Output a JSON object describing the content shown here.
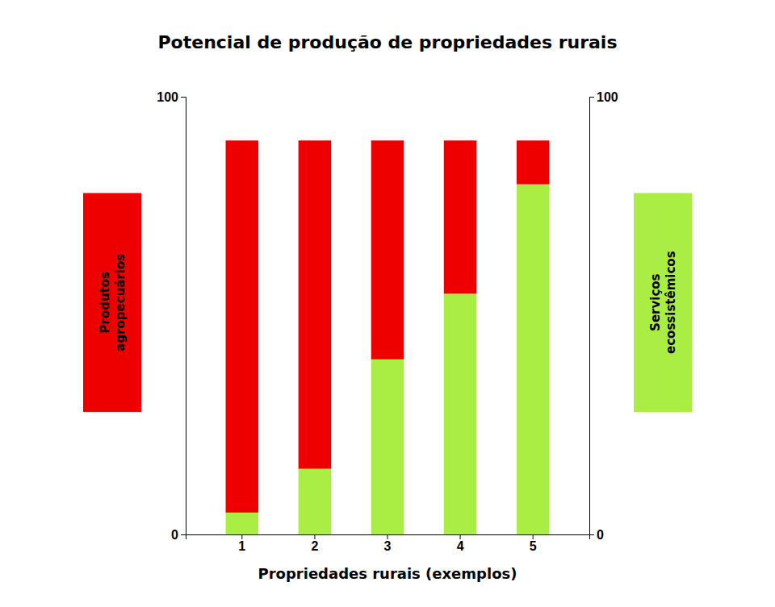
{
  "chart_data": {
    "type": "bar",
    "stacked": true,
    "title": "Potencial de produção de propriedades rurais",
    "xlabel": "Propriedades rurais (exemplos)",
    "categories": [
      1,
      2,
      3,
      4,
      5
    ],
    "series": [
      {
        "name": "Serviços\necossistêmicos",
        "color": "#AAEE44",
        "values": [
          5,
          15,
          40,
          55,
          80
        ]
      },
      {
        "name": "Produtos\nagropecuários",
        "color": "#EE0000",
        "values": [
          85,
          75,
          50,
          35,
          10
        ]
      }
    ],
    "ylim": [
      0,
      100
    ],
    "yticks": [
      0,
      100
    ],
    "y2lim": [
      0,
      100
    ],
    "y2ticks": [
      0,
      100
    ],
    "grid": false
  }
}
